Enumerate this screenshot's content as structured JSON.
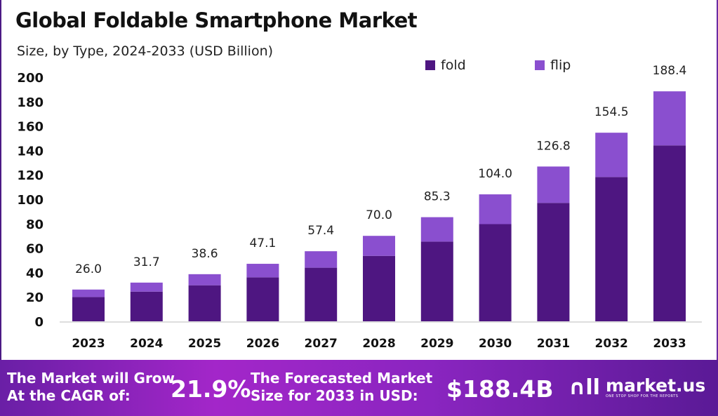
{
  "chart_data": {
    "type": "bar",
    "stacked": true,
    "title": "Global Foldable Smartphone Market",
    "subtitle": "Size, by Type, 2024-2033 (USD Billion)",
    "categories": [
      "2023",
      "2024",
      "2025",
      "2026",
      "2027",
      "2028",
      "2029",
      "2030",
      "2031",
      "2032",
      "2033"
    ],
    "series": [
      {
        "name": "fold",
        "color": "#4e1681",
        "values": [
          19.9,
          24.3,
          29.5,
          36.0,
          43.9,
          53.6,
          65.3,
          79.6,
          97.0,
          118.2,
          144.1
        ]
      },
      {
        "name": "flip",
        "color": "#8a4fcf",
        "values": [
          6.1,
          7.4,
          9.1,
          11.1,
          13.5,
          16.4,
          20.0,
          24.4,
          29.8,
          36.3,
          44.3
        ]
      }
    ],
    "totals": [
      "26.0",
      "31.7",
      "38.6",
      "47.1",
      "57.4",
      "70.0",
      "85.3",
      "104.0",
      "126.8",
      "154.5",
      "188.4"
    ],
    "yticks": [
      "0",
      "20",
      "40",
      "60",
      "80",
      "100",
      "120",
      "140",
      "160",
      "180",
      "200"
    ],
    "ylim": [
      0,
      200
    ],
    "grid": false,
    "legend_placement": "top"
  },
  "footer": {
    "cagr_label_1": "The Market will Grow",
    "cagr_label_2": "At the CAGR of:",
    "cagr_value": "21.9%",
    "forecast_label_1": "The Forecasted Market",
    "forecast_label_2": "Size for 2033 in USD:",
    "forecast_value": "$188.4B",
    "brand": "market.us",
    "brand_tagline": "ONE STOP SHOP FOR THE REPORTS"
  }
}
